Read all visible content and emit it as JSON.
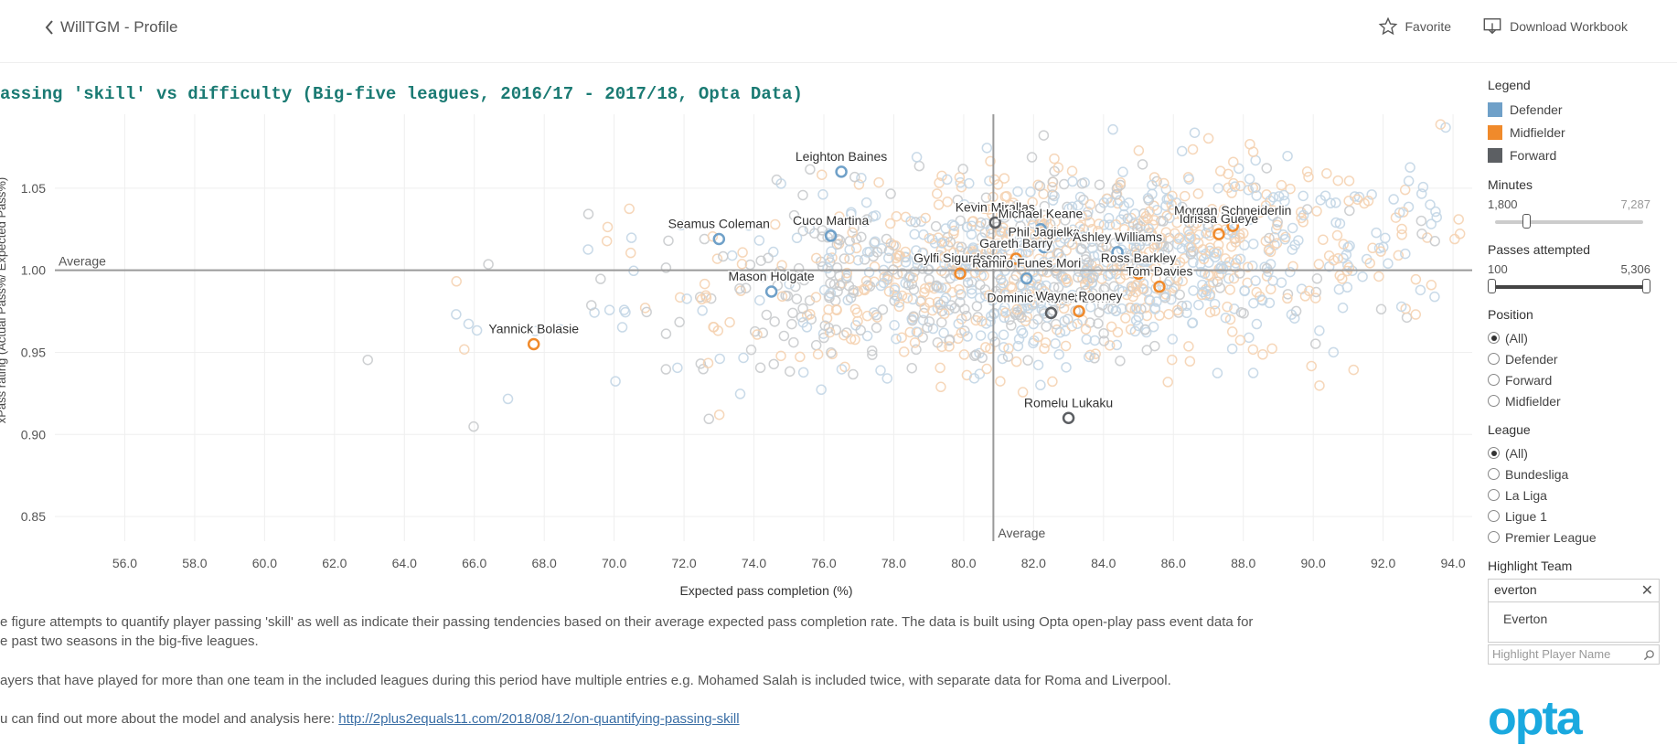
{
  "header": {
    "back_label": "WillTGM - Profile",
    "favorite_label": "Favorite",
    "download_label": "Download Workbook"
  },
  "title": "assing 'skill' vs difficulty (Big-five leagues, 2016/17 - 2017/18, Opta Data)",
  "description": [
    "e figure attempts to quantify player passing 'skill' as well as indicate their passing tendencies based on their average expected pass completion rate. The data is built using Opta open-play pass event data for",
    "e past two seasons in the big-five leagues.",
    "ayers that have played for more than one team in the included leagues during this period have multiple entries e.g. Mohamed Salah is included twice, with separate data for Roma and Liverpool.",
    "u can find out more about the model and analysis here: "
  ],
  "link": "http://2plus2equals11.com/2018/08/12/on-quantifying-passing-skill",
  "sidebar": {
    "legend_title": "Legend",
    "legend": [
      {
        "label": "Defender",
        "color": "#6fa0c8"
      },
      {
        "label": "Midfielder",
        "color": "#f08a2b"
      },
      {
        "label": "Forward",
        "color": "#5c5f63"
      }
    ],
    "minutes": {
      "title": "Minutes",
      "min": "1,800",
      "max": "7,287"
    },
    "passes": {
      "title": "Passes attempted",
      "min": "100",
      "max": "5,306"
    },
    "position": {
      "title": "Position",
      "options": [
        "(All)",
        "Defender",
        "Forward",
        "Midfielder"
      ],
      "selected": "(All)"
    },
    "league": {
      "title": "League",
      "options": [
        "(All)",
        "Bundesliga",
        "La Liga",
        "Ligue 1",
        "Premier League"
      ],
      "selected": "(All)"
    },
    "highlight_team": {
      "title": "Highlight Team",
      "value": "everton",
      "option": "Everton"
    },
    "highlight_player_placeholder": "Highlight Player Name"
  },
  "logo": "opta",
  "chart_data": {
    "type": "scatter",
    "xlabel": "Expected pass completion (%)",
    "ylabel": "xPass rating (Actual Pass%/ Expected Pass%)",
    "xlim": [
      54.0,
      94.6
    ],
    "ylim": [
      0.835,
      1.095
    ],
    "xticks": [
      "56.0",
      "58.0",
      "60.0",
      "62.0",
      "64.0",
      "66.0",
      "68.0",
      "70.0",
      "72.0",
      "74.0",
      "76.0",
      "78.0",
      "80.0",
      "82.0",
      "84.0",
      "86.0",
      "88.0",
      "90.0",
      "92.0",
      "94.0"
    ],
    "yticks": [
      "0.85",
      "0.90",
      "0.95",
      "1.00",
      "1.05"
    ],
    "reference_lines": [
      {
        "axis": "y",
        "value": 1.0,
        "label": "Average"
      },
      {
        "axis": "x",
        "value": 80.85,
        "label": "Average"
      }
    ],
    "highlighted": [
      {
        "name": "Leighton Baines",
        "position": "Defender",
        "x": 76.5,
        "y": 1.06
      },
      {
        "name": "Seamus Coleman",
        "position": "Defender",
        "x": 73.0,
        "y": 1.019
      },
      {
        "name": "Cuco Martina",
        "position": "Defender",
        "x": 76.2,
        "y": 1.021
      },
      {
        "name": "Mason Holgate",
        "position": "Defender",
        "x": 74.5,
        "y": 0.987
      },
      {
        "name": "Yannick Bolasie",
        "position": "Midfielder",
        "x": 67.7,
        "y": 0.955
      },
      {
        "name": "Kevin Mirallas",
        "position": "Forward",
        "x": 80.9,
        "y": 1.029
      },
      {
        "name": "Michael Keane",
        "position": "Defender",
        "x": 82.2,
        "y": 1.025
      },
      {
        "name": "Phil Jagielka",
        "position": "Defender",
        "x": 82.3,
        "y": 1.014
      },
      {
        "name": "Ashley Williams",
        "position": "Defender",
        "x": 84.4,
        "y": 1.011
      },
      {
        "name": "Gareth Barry",
        "position": "Midfielder",
        "x": 81.5,
        "y": 1.007
      },
      {
        "name": "Gylfi Sigurdsson",
        "position": "Midfielder",
        "x": 79.9,
        "y": 0.998
      },
      {
        "name": "Ramiro Funes Mori",
        "position": "Defender",
        "x": 81.8,
        "y": 0.995
      },
      {
        "name": "Ross Barkley",
        "position": "Midfielder",
        "x": 85.0,
        "y": 0.998
      },
      {
        "name": "Tom Davies",
        "position": "Midfielder",
        "x": 85.6,
        "y": 0.99
      },
      {
        "name": "Morgan Schneiderlin",
        "position": "Midfielder",
        "x": 87.7,
        "y": 1.027
      },
      {
        "name": "Idrissa Gueye",
        "position": "Midfielder",
        "x": 87.3,
        "y": 1.022
      },
      {
        "name": "Dominic Calvert-Lewin",
        "position": "Forward",
        "x": 82.5,
        "y": 0.974
      },
      {
        "name": "Wayne Rooney",
        "position": "Midfielder",
        "x": 83.3,
        "y": 0.975
      },
      {
        "name": "Romelu Lukaku",
        "position": "Forward",
        "x": 83.0,
        "y": 0.91
      }
    ],
    "background_points": "~1,500 other big-five league players (faded)"
  }
}
